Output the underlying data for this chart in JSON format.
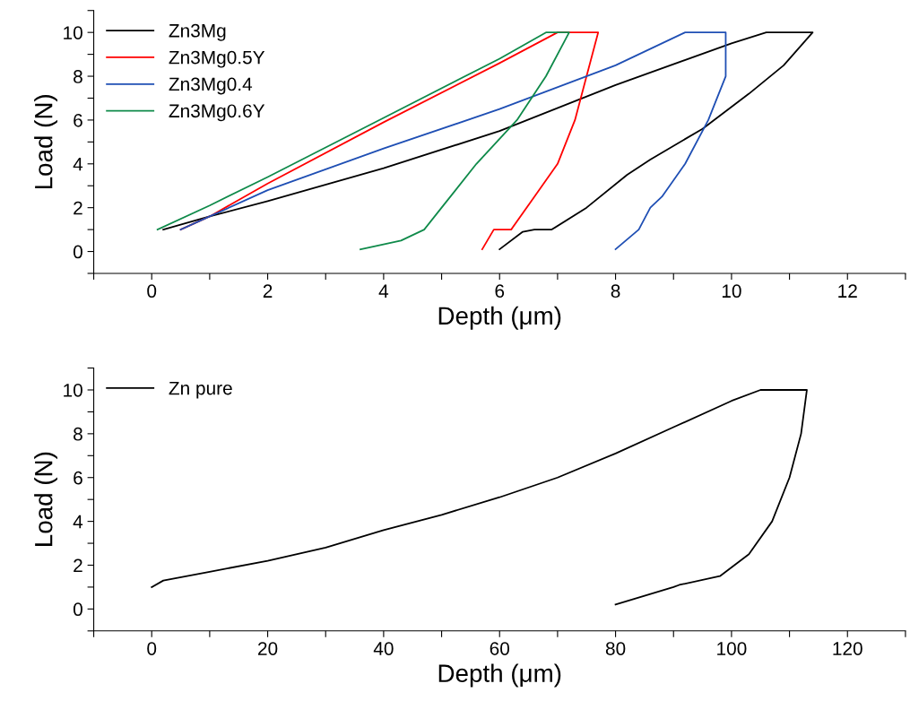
{
  "chart_data": [
    {
      "type": "line",
      "xlabel": "Depth (μm)",
      "ylabel": "Load (N)",
      "xlim": [
        -1,
        13
      ],
      "ylim": [
        -1,
        11
      ],
      "xticks": [
        {
          "value": -1,
          "label": null
        },
        0,
        {
          "value": 1,
          "label": null
        },
        2,
        {
          "value": 3,
          "label": null
        },
        4,
        {
          "value": 5,
          "label": null
        },
        6,
        {
          "value": 7,
          "label": null
        },
        8,
        {
          "value": 9,
          "label": null
        },
        10,
        {
          "value": 11,
          "label": null
        },
        12,
        {
          "value": 13,
          "label": null
        }
      ],
      "yticks": [
        {
          "value": -1,
          "label": null
        },
        0,
        {
          "value": 1,
          "label": null
        },
        2,
        {
          "value": 3,
          "label": null
        },
        4,
        {
          "value": 5,
          "label": null
        },
        6,
        {
          "value": 7,
          "label": null
        },
        8,
        {
          "value": 9,
          "label": null
        },
        10,
        {
          "value": 11,
          "label": null
        }
      ],
      "legend": "top left",
      "grid": false,
      "marker": "none",
      "line_style": "solid",
      "series": [
        {
          "name": "Zn3Mg",
          "color": "#000000",
          "x": [
            0.2,
            1,
            2,
            4,
            6,
            8,
            10,
            10.6,
            11.4,
            10.9,
            10.3,
            9.5,
            8.6,
            8.2,
            7.5,
            6.9,
            6.6,
            6.4,
            6.0
          ],
          "values": [
            1.0,
            1.6,
            2.3,
            3.8,
            5.5,
            7.6,
            9.5,
            10,
            10,
            8.5,
            7.2,
            5.6,
            4.2,
            3.5,
            2.0,
            1.0,
            1.0,
            0.9,
            0.1
          ]
        },
        {
          "name": "Zn3Mg0.5Y",
          "color": "#ff0000",
          "x": [
            0.5,
            1,
            2,
            4,
            6,
            7.0,
            7.7,
            7.5,
            7.3,
            7.0,
            6.6,
            6.2,
            5.9,
            5.7
          ],
          "values": [
            1.0,
            1.6,
            3.1,
            5.9,
            8.6,
            10,
            10,
            8,
            6,
            4,
            2.5,
            1.0,
            1.0,
            0.1
          ]
        },
        {
          "name": "Zn3Mg0.4",
          "color": "#1f4fb4",
          "x": [
            0.5,
            1,
            2,
            4,
            6,
            8,
            9.2,
            9.9,
            9.9,
            9.6,
            9.2,
            8.8,
            8.6,
            8.4,
            8.0
          ],
          "values": [
            1.0,
            1.6,
            2.8,
            4.7,
            6.5,
            8.5,
            10,
            10,
            8,
            6,
            4,
            2.5,
            2.0,
            1.0,
            0.1
          ]
        },
        {
          "name": "Zn3Mg0.6Y",
          "color": "#0f8a4a",
          "x": [
            0.1,
            1,
            2,
            4,
            6,
            6.8,
            7.2,
            6.8,
            6.3,
            5.6,
            5.0,
            4.7,
            4.3,
            3.6
          ],
          "values": [
            1.0,
            2.1,
            3.4,
            6.1,
            8.8,
            10,
            10,
            8,
            6,
            4,
            2,
            1.0,
            0.5,
            0.1
          ]
        }
      ]
    },
    {
      "type": "line",
      "xlabel": "Depth (μm)",
      "ylabel": "Load (N)",
      "xlim": [
        -10,
        130
      ],
      "ylim": [
        -1,
        11
      ],
      "xticks": [
        {
          "value": -10,
          "label": null
        },
        0,
        {
          "value": 10,
          "label": null
        },
        20,
        {
          "value": 30,
          "label": null
        },
        40,
        {
          "value": 50,
          "label": null
        },
        60,
        {
          "value": 70,
          "label": null
        },
        80,
        {
          "value": 90,
          "label": null
        },
        100,
        {
          "value": 110,
          "label": null
        },
        120,
        {
          "value": 130,
          "label": null
        }
      ],
      "yticks": [
        {
          "value": -1,
          "label": null
        },
        0,
        {
          "value": 1,
          "label": null
        },
        2,
        {
          "value": 3,
          "label": null
        },
        4,
        {
          "value": 5,
          "label": null
        },
        6,
        {
          "value": 7,
          "label": null
        },
        8,
        {
          "value": 9,
          "label": null
        },
        10,
        {
          "value": 11,
          "label": null
        }
      ],
      "legend": "top left",
      "grid": false,
      "marker": "none",
      "line_style": "solid",
      "series": [
        {
          "name": "Zn pure",
          "color": "#000000",
          "x": [
            0,
            2,
            10,
            20,
            30,
            40,
            50,
            60,
            70,
            80,
            90,
            100,
            105,
            113,
            112,
            110,
            107,
            103,
            98,
            91,
            90,
            85,
            80
          ],
          "values": [
            1.0,
            1.3,
            1.7,
            2.2,
            2.8,
            3.6,
            4.3,
            5.1,
            6.0,
            7.1,
            8.3,
            9.5,
            10,
            10,
            8,
            6,
            4,
            2.5,
            1.5,
            1.1,
            1.0,
            0.6,
            0.2
          ]
        }
      ]
    }
  ]
}
